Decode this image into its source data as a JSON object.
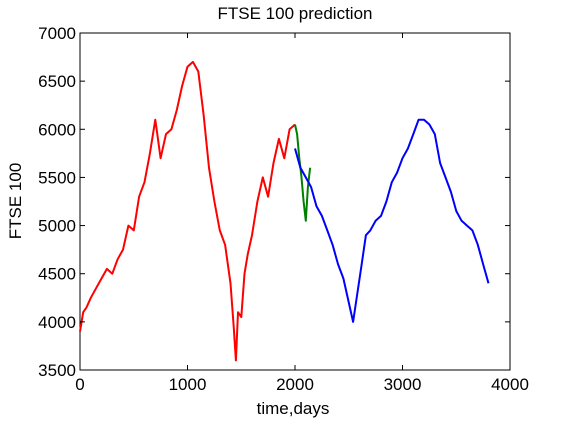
{
  "chart_data": {
    "type": "line",
    "title": "FTSE 100 prediction",
    "xlabel": "time,days",
    "ylabel": "FTSE 100",
    "xlim": [
      0,
      4000
    ],
    "ylim": [
      3500,
      7000
    ],
    "xticks": [
      "0",
      "1000",
      "2000",
      "3000",
      "4000"
    ],
    "yticks": [
      "3500",
      "4000",
      "4500",
      "5000",
      "5500",
      "6000",
      "6500",
      "7000"
    ],
    "grid": false,
    "series": [
      {
        "color": "#ff0000",
        "x": [
          0,
          30,
          60,
          100,
          150,
          200,
          250,
          300,
          350,
          400,
          450,
          500,
          550,
          600,
          650,
          700,
          750,
          800,
          850,
          900,
          950,
          1000,
          1050,
          1100,
          1150,
          1200,
          1250,
          1300,
          1350,
          1400,
          1430,
          1450,
          1470,
          1500,
          1530,
          1560,
          1600,
          1650,
          1700,
          1750,
          1800,
          1850,
          1900,
          1950,
          2000
        ],
        "y": [
          3900,
          4100,
          4150,
          4250,
          4350,
          4450,
          4550,
          4500,
          4650,
          4750,
          5000,
          4950,
          5300,
          5450,
          5750,
          6100,
          5700,
          5950,
          6000,
          6200,
          6450,
          6650,
          6700,
          6600,
          6150,
          5600,
          5250,
          4950,
          4800,
          4400,
          3950,
          3600,
          4100,
          4050,
          4500,
          4700,
          4900,
          5250,
          5500,
          5300,
          5650,
          5900,
          5700,
          6000,
          6050
        ]
      },
      {
        "color": "#007f00",
        "x": [
          2000,
          2020,
          2040,
          2060,
          2080,
          2100,
          2120,
          2140
        ],
        "y": [
          6050,
          5950,
          5700,
          5500,
          5250,
          5050,
          5400,
          5600
        ]
      },
      {
        "color": "#0000ff",
        "x": [
          2000,
          2050,
          2100,
          2150,
          2200,
          2250,
          2300,
          2350,
          2400,
          2450,
          2500,
          2540,
          2580,
          2620,
          2660,
          2700,
          2750,
          2800,
          2850,
          2900,
          2950,
          3000,
          3050,
          3100,
          3150,
          3200,
          3250,
          3300,
          3350,
          3400,
          3450,
          3500,
          3550,
          3600,
          3650,
          3700,
          3750,
          3800
        ],
        "y": [
          5800,
          5600,
          5500,
          5400,
          5200,
          5100,
          4950,
          4800,
          4600,
          4450,
          4200,
          4000,
          4300,
          4600,
          4900,
          4950,
          5050,
          5100,
          5250,
          5450,
          5550,
          5700,
          5800,
          5950,
          6100,
          6100,
          6050,
          5950,
          5650,
          5500,
          5350,
          5150,
          5050,
          5000,
          4950,
          4800,
          4600,
          4400
        ]
      }
    ]
  }
}
